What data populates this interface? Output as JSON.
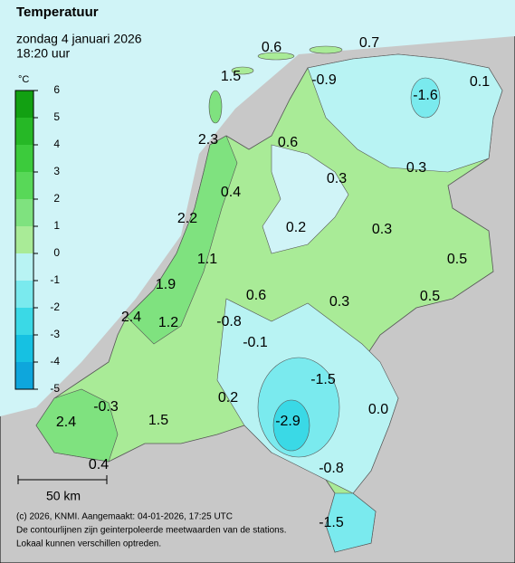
{
  "header": {
    "title": "Temperatuur",
    "date": "zondag 4 januari 2026",
    "time": "18:20 uur"
  },
  "legend": {
    "unit": "°C",
    "ticks": [
      6,
      5,
      4,
      3,
      2,
      1,
      0,
      -1,
      -2,
      -3,
      -4,
      -5
    ],
    "colors": [
      "#12a012",
      "#26b826",
      "#3ccb3c",
      "#58d858",
      "#7fe27f",
      "#a9eb97",
      "#b8f3f3",
      "#7aeaee",
      "#3ad9e6",
      "#16c1e2",
      "#0ea6dc"
    ]
  },
  "stations": [
    "1.5",
    "0.6",
    "0.7",
    "-0.9",
    "-1.6",
    "0.1",
    "2.3",
    "0.6",
    "0.3",
    "0.3",
    "0.4",
    "2.2",
    "0.2",
    "0.3",
    "0.5",
    "1.1",
    "1.9",
    "0.6",
    "0.3",
    "0.5",
    "2.4",
    "1.2",
    "-0.8",
    "-0.1",
    "-1.5",
    "0.2",
    "-0.3",
    "0.0",
    "2.4",
    "1.5",
    "-2.9",
    "0.4",
    "-0.8",
    "-1.5"
  ],
  "scale": "50 km",
  "footer": [
    "(c) 2026, KNMI. Aangemaakt: 04-01-2026, 17:25 UTC",
    "De contourlijnen zijn geinterpoleerde meetwaarden van de stations.",
    "Lokaal kunnen verschillen optreden."
  ]
}
